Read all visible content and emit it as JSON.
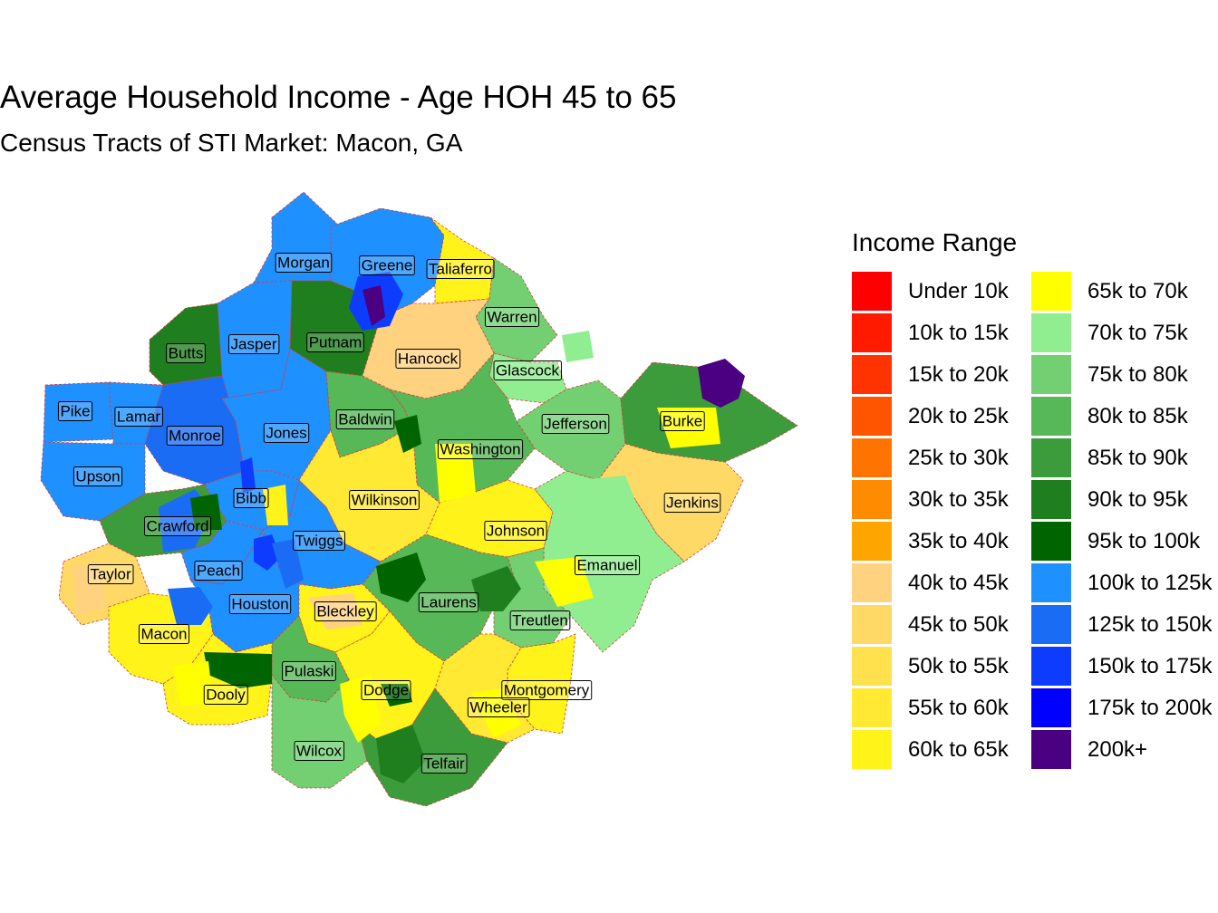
{
  "title": "Average Household Income - Age HOH 45 to 65",
  "subtitle": "Census Tracts of STI Market: Macon, GA",
  "legend": {
    "title": "Income Range",
    "items": [
      {
        "label": "Under 10k",
        "color": "#ff0000"
      },
      {
        "label": "10k to 15k",
        "color": "#ff1a00"
      },
      {
        "label": "15k to 20k",
        "color": "#ff3300"
      },
      {
        "label": "20k to 25k",
        "color": "#ff5500"
      },
      {
        "label": "25k to 30k",
        "color": "#ff7400"
      },
      {
        "label": "30k to 35k",
        "color": "#ff8c00"
      },
      {
        "label": "35k to 40k",
        "color": "#ffa500"
      },
      {
        "label": "40k to 45k",
        "color": "#ffd27f"
      },
      {
        "label": "45k to 50k",
        "color": "#ffd966"
      },
      {
        "label": "50k to 55k",
        "color": "#ffe14d"
      },
      {
        "label": "55k to 60k",
        "color": "#ffe933"
      },
      {
        "label": "60k to 65k",
        "color": "#fff31a"
      },
      {
        "label": "65k to 70k",
        "color": "#ffff00"
      },
      {
        "label": "70k to 75k",
        "color": "#90ee90"
      },
      {
        "label": "75k to 80k",
        "color": "#72d072"
      },
      {
        "label": "80k to 85k",
        "color": "#57b857"
      },
      {
        "label": "85k to 90k",
        "color": "#3c9c3c"
      },
      {
        "label": "90k to 95k",
        "color": "#1f7f1f"
      },
      {
        "label": "95k to 100k",
        "color": "#006400"
      },
      {
        "label": "100k to 125k",
        "color": "#1e90ff"
      },
      {
        "label": "125k to 150k",
        "color": "#1a6cf5"
      },
      {
        "label": "150k to 175k",
        "color": "#0d3cff"
      },
      {
        "label": "175k to 200k",
        "color": "#0000ff"
      },
      {
        "label": "200k+",
        "color": "#4b0082"
      }
    ]
  },
  "counties": [
    {
      "name": "Morgan",
      "range": "100k to 125k"
    },
    {
      "name": "Greene",
      "range": "100k to 125k"
    },
    {
      "name": "Taliaferro",
      "range": "60k to 65k"
    },
    {
      "name": "Warren",
      "range": "75k to 80k"
    },
    {
      "name": "Putnam",
      "range": "90k to 95k"
    },
    {
      "name": "Jasper",
      "range": "100k to 125k"
    },
    {
      "name": "Butts",
      "range": "90k to 95k"
    },
    {
      "name": "Hancock",
      "range": "40k to 45k"
    },
    {
      "name": "Glascock",
      "range": "70k to 75k"
    },
    {
      "name": "Pike",
      "range": "100k to 125k"
    },
    {
      "name": "Lamar",
      "range": "100k to 125k"
    },
    {
      "name": "Monroe",
      "range": "125k to 150k"
    },
    {
      "name": "Jones",
      "range": "100k to 125k"
    },
    {
      "name": "Baldwin",
      "range": "80k to 85k"
    },
    {
      "name": "Jefferson",
      "range": "75k to 80k"
    },
    {
      "name": "Burke",
      "range": "85k to 90k"
    },
    {
      "name": "Washington",
      "range": "80k to 85k"
    },
    {
      "name": "Upson",
      "range": "100k to 125k"
    },
    {
      "name": "Bibb",
      "range": "100k to 125k"
    },
    {
      "name": "Wilkinson",
      "range": "55k to 60k"
    },
    {
      "name": "Jenkins",
      "range": "45k to 50k"
    },
    {
      "name": "Crawford",
      "range": "85k to 90k"
    },
    {
      "name": "Twiggs",
      "range": "100k to 125k"
    },
    {
      "name": "Johnson",
      "range": "60k to 65k"
    },
    {
      "name": "Emanuel",
      "range": "70k to 75k"
    },
    {
      "name": "Taylor",
      "range": "45k to 50k"
    },
    {
      "name": "Peach",
      "range": "100k to 125k"
    },
    {
      "name": "Houston",
      "range": "100k to 125k"
    },
    {
      "name": "Laurens",
      "range": "80k to 85k"
    },
    {
      "name": "Bleckley",
      "range": "60k to 65k"
    },
    {
      "name": "Treutlen",
      "range": "75k to 80k"
    },
    {
      "name": "Macon",
      "range": "60k to 65k"
    },
    {
      "name": "Pulaski",
      "range": "80k to 85k"
    },
    {
      "name": "Dooly",
      "range": "60k to 65k"
    },
    {
      "name": "Dodge",
      "range": "60k to 65k"
    },
    {
      "name": "Montgomery",
      "range": "60k to 65k"
    },
    {
      "name": "Wheeler",
      "range": "55k to 60k"
    },
    {
      "name": "Wilcox",
      "range": "75k to 80k"
    },
    {
      "name": "Telfair",
      "range": "85k to 90k"
    }
  ]
}
